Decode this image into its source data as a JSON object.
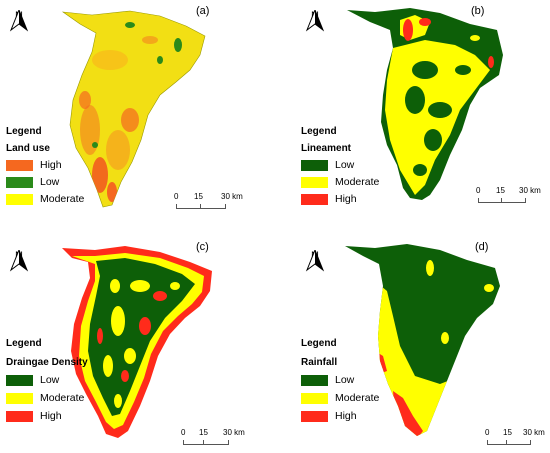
{
  "panels": [
    {
      "id": "a",
      "label": "(a)",
      "north": "N",
      "legend_title": "Legend",
      "legend_subtitle": "Land use",
      "legend_items": [
        {
          "label": "High",
          "color": "#f5681f"
        },
        {
          "label": "Low",
          "color": "#2a8a1a"
        },
        {
          "label": "Moderate",
          "color": "#ffff00"
        }
      ],
      "scale": {
        "t0": "0",
        "t1": "15",
        "t2": "30 km"
      }
    },
    {
      "id": "b",
      "label": "(b)",
      "north": "N",
      "legend_title": "Legend",
      "legend_subtitle": "Lineament",
      "legend_items": [
        {
          "label": "Low",
          "color": "#0d5f08"
        },
        {
          "label": "Moderate",
          "color": "#ffff00"
        },
        {
          "label": "High",
          "color": "#ff2b1b"
        }
      ],
      "scale": {
        "t0": "0",
        "t1": "15",
        "t2": "30 km"
      }
    },
    {
      "id": "c",
      "label": "(c)",
      "north": "N",
      "legend_title": "Legend",
      "legend_subtitle": "Draingae Density",
      "legend_items": [
        {
          "label": "Low",
          "color": "#0d5f08"
        },
        {
          "label": "Moderate",
          "color": "#ffff00"
        },
        {
          "label": "High",
          "color": "#ff2b1b"
        }
      ],
      "scale": {
        "t0": "0",
        "t1": "15",
        "t2": "30 km"
      }
    },
    {
      "id": "d",
      "label": "(d)",
      "north": "N",
      "legend_title": "Legend",
      "legend_subtitle": "Rainfall",
      "legend_items": [
        {
          "label": "Low",
          "color": "#0d5f08"
        },
        {
          "label": "Moderate",
          "color": "#ffff00"
        },
        {
          "label": "High",
          "color": "#ff2b1b"
        }
      ],
      "scale": {
        "t0": "0",
        "t1": "15",
        "t2": "30 km"
      }
    }
  ]
}
